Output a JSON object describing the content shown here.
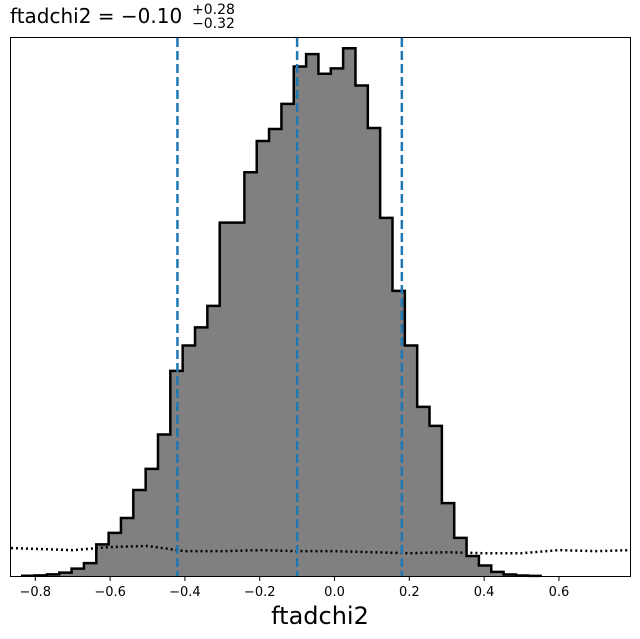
{
  "chart_data": {
    "type": "histogram",
    "title": {
      "main": "ftadchi2 = −0.10",
      "upper": "+0.28",
      "lower": "−0.32"
    },
    "xlabel": "ftadchi2",
    "ylabel": "",
    "xlim": [
      -0.865,
      0.79
    ],
    "ylim": [
      0,
      520
    ],
    "xticks": [
      -0.8,
      -0.6,
      -0.4,
      -0.2,
      0.0,
      0.2,
      0.4,
      0.6
    ],
    "xtick_labels": [
      "−0.8",
      "−0.6",
      "−0.4",
      "−0.2",
      "0.0",
      "0.2",
      "0.4",
      "0.6"
    ],
    "grid": false,
    "bin_edges": [
      -0.835,
      -0.802,
      -0.769,
      -0.736,
      -0.703,
      -0.67,
      -0.637,
      -0.604,
      -0.571,
      -0.538,
      -0.505,
      -0.472,
      -0.439,
      -0.406,
      -0.373,
      -0.34,
      -0.307,
      -0.274,
      -0.241,
      -0.208,
      -0.175,
      -0.142,
      -0.109,
      -0.076,
      -0.043,
      -0.01,
      0.023,
      0.056,
      0.089,
      0.122,
      0.155,
      0.188,
      0.221,
      0.254,
      0.287,
      0.32,
      0.353,
      0.386,
      0.419,
      0.452,
      0.485,
      0.518,
      0.551
    ],
    "counts": [
      0.2,
      0.6,
      1.6,
      3.3,
      7.1,
      12.5,
      30.6,
      41.7,
      56.0,
      83.1,
      103.5,
      136.8,
      198.3,
      222.8,
      240.3,
      261.1,
      341.5,
      341.5,
      390.2,
      420.5,
      432.1,
      456.3,
      492.4,
      504.4,
      485.5,
      490.6,
      510.1,
      474.1,
      433.0,
      346.2,
      275.6,
      222.8,
      163.5,
      145.1,
      70.4,
      36.9,
      19.3,
      10.1,
      4.0,
      1.5,
      0.5,
      0.1
    ],
    "fill_color": "#808080",
    "edge_color": "#000000",
    "quantile_lines": {
      "values": [
        -0.42,
        -0.1,
        0.18
      ],
      "color": "#1f77b4",
      "style": "dashed"
    },
    "prior_curve": {
      "x": [
        -0.865,
        -0.7,
        -0.6,
        -0.5,
        -0.4,
        -0.3,
        -0.2,
        -0.1,
        0.0,
        0.1,
        0.2,
        0.3,
        0.4,
        0.5,
        0.6,
        0.7,
        0.79
      ],
      "y": [
        27,
        25,
        28,
        29,
        24,
        24,
        25,
        24,
        24,
        23,
        22,
        23,
        22,
        22,
        25,
        24,
        25
      ],
      "color": "#000000",
      "style": "dotted"
    }
  }
}
